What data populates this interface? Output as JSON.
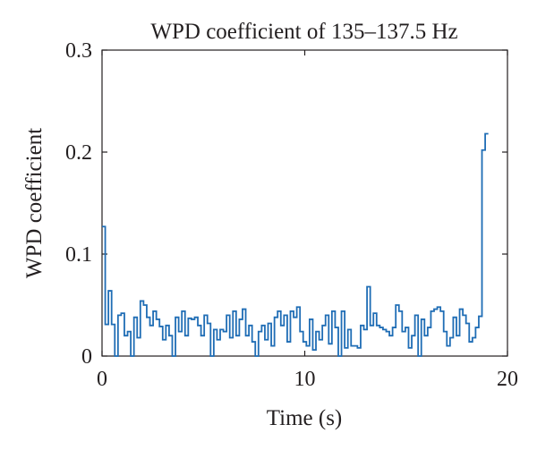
{
  "chart_data": {
    "type": "line",
    "step": true,
    "title": "WPD coefficient of 135–137.5 Hz",
    "xlabel": "Time (s)",
    "ylabel": "WPD coefficient",
    "xlim": [
      0,
      20
    ],
    "ylim": [
      0,
      0.3
    ],
    "xticks": [
      0,
      10,
      20
    ],
    "yticks": [
      0,
      0.1,
      0.2,
      0.3
    ],
    "xtick_labels": [
      "0",
      "10",
      "20"
    ],
    "ytick_labels": [
      "0",
      "0.1",
      "0.2",
      "0.3"
    ],
    "grid": false,
    "line_color": "#1f6db5",
    "bin_width": 0.1575,
    "series": [
      {
        "values": [
          0.127,
          0.031,
          0.064,
          0.031,
          0.0,
          0.04,
          0.042,
          0.02,
          0.024,
          0.0,
          0.038,
          0.018,
          0.054,
          0.05,
          0.038,
          0.03,
          0.044,
          0.036,
          0.029,
          0.016,
          0.03,
          0.02,
          0.0,
          0.038,
          0.024,
          0.044,
          0.02,
          0.037,
          0.036,
          0.038,
          0.03,
          0.02,
          0.04,
          0.032,
          0.0,
          0.026,
          0.016,
          0.026,
          0.024,
          0.04,
          0.018,
          0.044,
          0.02,
          0.036,
          0.046,
          0.02,
          0.03,
          0.014,
          0.0,
          0.024,
          0.03,
          0.016,
          0.032,
          0.01,
          0.038,
          0.044,
          0.03,
          0.04,
          0.014,
          0.044,
          0.038,
          0.048,
          0.024,
          0.014,
          0.01,
          0.036,
          0.006,
          0.024,
          0.016,
          0.03,
          0.04,
          0.012,
          0.044,
          0.028,
          0.0,
          0.044,
          0.008,
          0.026,
          0.01,
          0.01,
          0.008,
          0.03,
          0.026,
          0.068,
          0.03,
          0.042,
          0.03,
          0.028,
          0.026,
          0.024,
          0.02,
          0.028,
          0.05,
          0.044,
          0.024,
          0.028,
          0.008,
          0.02,
          0.04,
          0.0,
          0.036,
          0.02,
          0.028,
          0.044,
          0.046,
          0.048,
          0.044,
          0.024,
          0.01,
          0.018,
          0.038,
          0.02,
          0.046,
          0.04,
          0.032,
          0.014,
          0.018,
          0.028,
          0.039,
          0.202,
          0.218
        ]
      }
    ]
  }
}
